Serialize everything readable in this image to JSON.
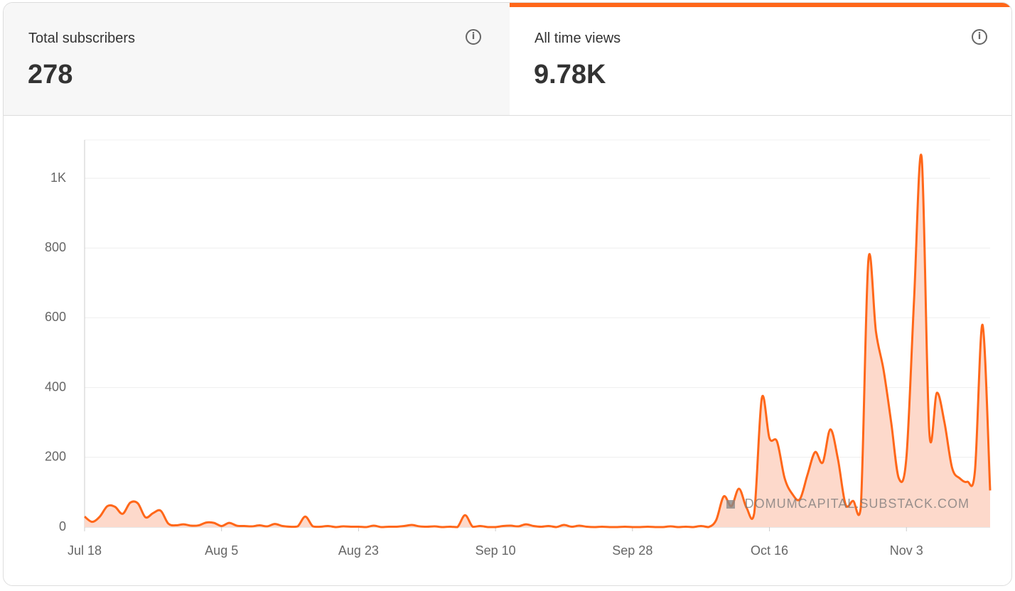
{
  "tabs": [
    {
      "label": "Total subscribers",
      "value": "278"
    },
    {
      "label": "All time views",
      "value": "9.78K"
    }
  ],
  "chart_data": {
    "type": "area",
    "color": "#ff6719",
    "fill": "#fdd9cb",
    "watermark": "DOMUMCAPITAL.SUBSTACK.COM",
    "categories": [
      "Jul 18",
      null,
      null,
      null,
      null,
      null,
      null,
      null,
      null,
      null,
      null,
      null,
      null,
      null,
      null,
      null,
      null,
      null,
      "Aug 5",
      null,
      null,
      null,
      null,
      null,
      null,
      null,
      null,
      null,
      null,
      null,
      null,
      null,
      null,
      null,
      null,
      null,
      "Aug 23",
      null,
      null,
      null,
      null,
      null,
      null,
      null,
      null,
      null,
      null,
      null,
      null,
      null,
      null,
      null,
      null,
      null,
      "Sep 10",
      null,
      null,
      null,
      null,
      null,
      null,
      null,
      null,
      null,
      null,
      null,
      null,
      null,
      null,
      null,
      null,
      null,
      "Sep 28",
      null,
      null,
      null,
      null,
      null,
      null,
      null,
      null,
      null,
      null,
      null,
      null,
      null,
      null,
      null,
      null,
      null,
      "Oct 16",
      null,
      null,
      null,
      null,
      null,
      null,
      null,
      null,
      null,
      null,
      null,
      null,
      null,
      null,
      null,
      null,
      null,
      "Nov 3",
      null,
      null,
      null,
      null,
      null,
      null,
      null,
      null,
      null,
      null,
      null
    ],
    "values": [
      30,
      15,
      30,
      60,
      58,
      38,
      70,
      68,
      28,
      40,
      47,
      10,
      5,
      8,
      4,
      5,
      13,
      12,
      3,
      12,
      4,
      3,
      2,
      5,
      2,
      9,
      3,
      1,
      2,
      30,
      2,
      1,
      3,
      0,
      2,
      1,
      1,
      0,
      4,
      0,
      1,
      1,
      3,
      6,
      2,
      1,
      2,
      0,
      1,
      0,
      34,
      1,
      3,
      0,
      0,
      3,
      4,
      2,
      8,
      3,
      1,
      3,
      0,
      6,
      1,
      4,
      1,
      0,
      1,
      0,
      0,
      1,
      0,
      0,
      1,
      0,
      0,
      2,
      0,
      1,
      0,
      3,
      0,
      20,
      88,
      60,
      110,
      55,
      40,
      370,
      255,
      245,
      140,
      95,
      80,
      150,
      215,
      185,
      280,
      195,
      65,
      75,
      55,
      765,
      560,
      450,
      300,
      140,
      200,
      650,
      1060,
      275,
      385,
      300,
      170,
      140,
      130,
      160,
      580,
      105
    ],
    "ylim": [
      0,
      1110
    ],
    "yticks": [
      0,
      200,
      400,
      600,
      800,
      {
        "value": 1000,
        "label": "1K"
      }
    ],
    "grid": true
  }
}
